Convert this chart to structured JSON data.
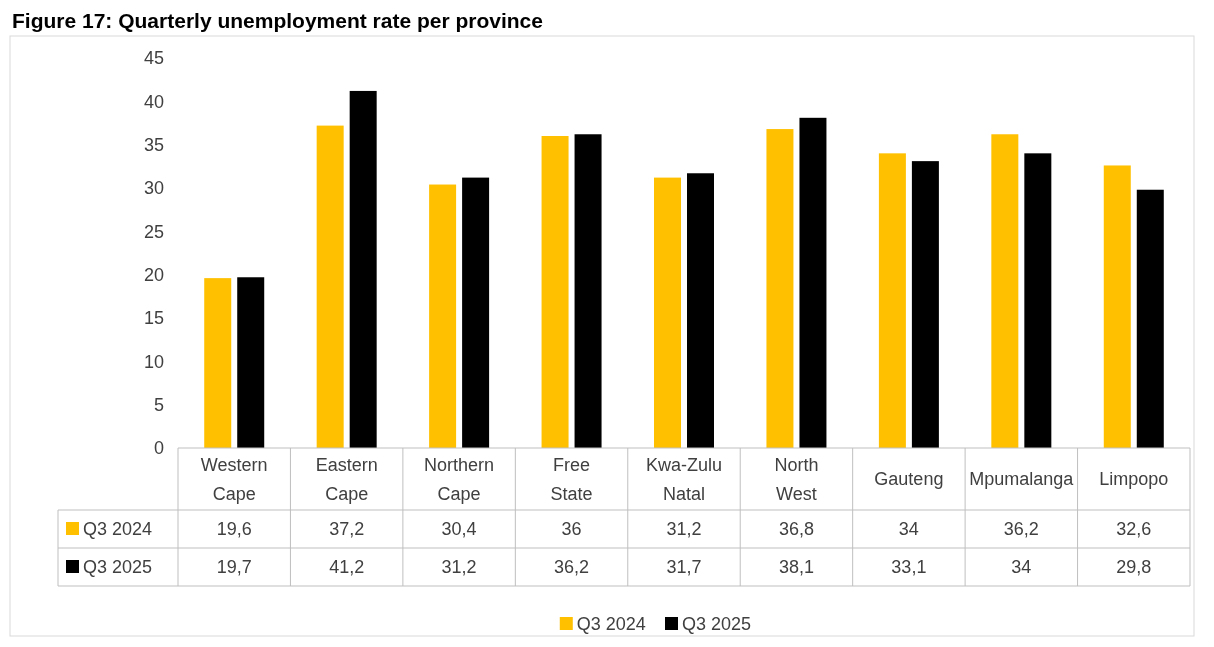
{
  "chart_data": {
    "type": "bar",
    "title": "Figure 17: Quarterly unemployment rate per province",
    "categories": [
      "Western Cape",
      "Eastern Cape",
      "Northern Cape",
      "Free State",
      "Kwa-Zulu Natal",
      "North West",
      "Gauteng",
      "Mpumalanga",
      "Limpopo"
    ],
    "series": [
      {
        "name": "Q3 2024",
        "color": "#ffc000",
        "values": [
          19.6,
          37.2,
          30.4,
          36,
          31.2,
          36.8,
          34,
          36.2,
          32.6
        ],
        "value_labels": [
          "19,6",
          "37,2",
          "30,4",
          "36",
          "31,2",
          "36,8",
          "34",
          "36,2",
          "32,6"
        ]
      },
      {
        "name": "Q3 2025",
        "color": "#000000",
        "values": [
          19.7,
          41.2,
          31.2,
          36.2,
          31.7,
          38.1,
          33.1,
          34,
          29.8
        ],
        "value_labels": [
          "19,7",
          "41,2",
          "31,2",
          "36,2",
          "31,7",
          "38,1",
          "33,1",
          "34",
          "29,8"
        ]
      }
    ],
    "ylim": [
      0,
      45
    ],
    "yticks": [
      0,
      5,
      10,
      15,
      20,
      25,
      30,
      35,
      40,
      45
    ],
    "grid": false,
    "legend": "bottom"
  }
}
